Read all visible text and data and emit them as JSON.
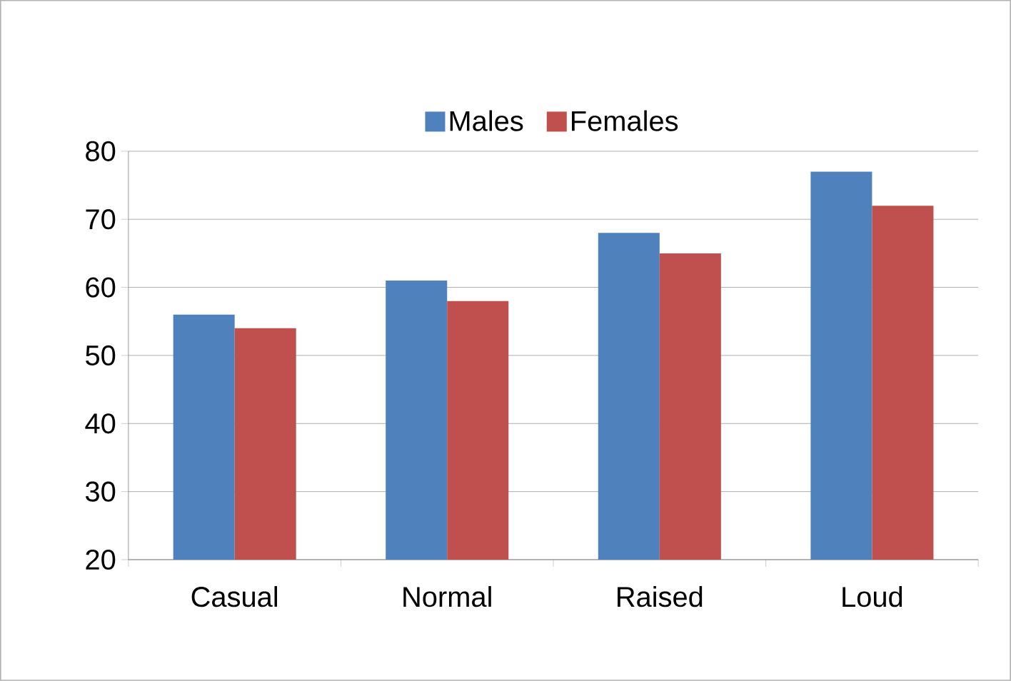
{
  "chart_data": {
    "type": "bar",
    "categories": [
      "Casual",
      "Normal",
      "Raised",
      "Loud"
    ],
    "series": [
      {
        "name": "Males",
        "color": "#4f81bd",
        "values": [
          56,
          61,
          68,
          77
        ]
      },
      {
        "name": "Females",
        "color": "#c0504d",
        "values": [
          54,
          58,
          65,
          72
        ]
      }
    ],
    "ylim": [
      20,
      80
    ],
    "yticks": [
      20,
      30,
      40,
      50,
      60,
      70,
      80
    ],
    "grid": "y",
    "legend": "top"
  }
}
